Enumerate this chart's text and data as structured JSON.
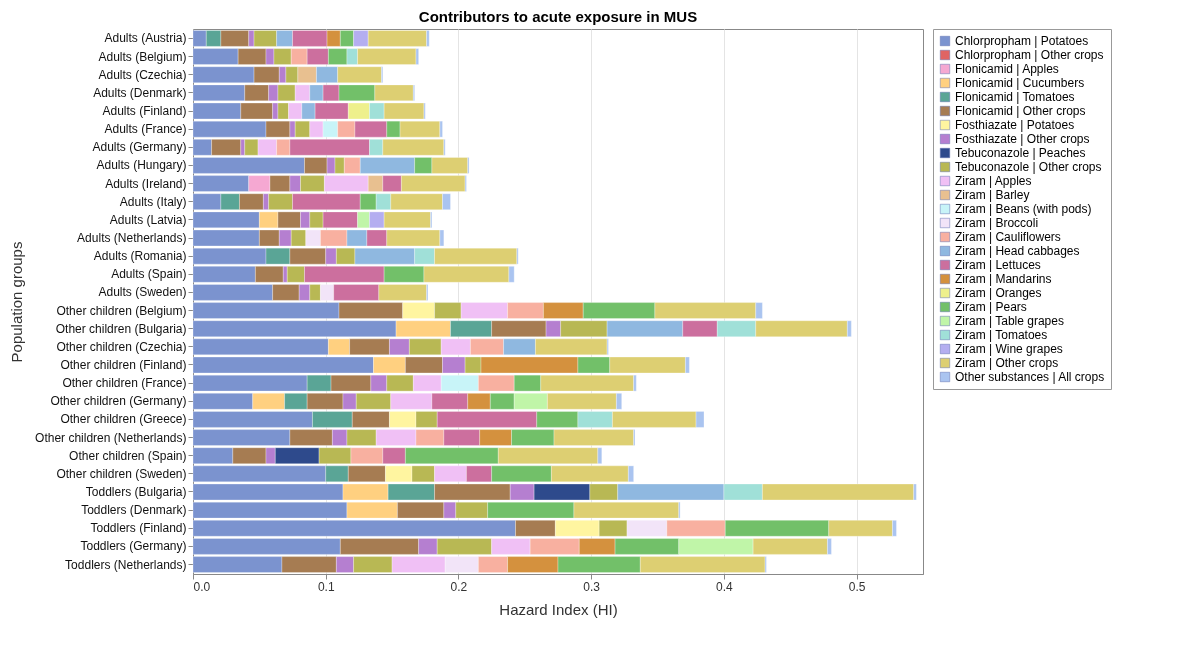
{
  "chart_data": {
    "type": "bar",
    "title": "Contributors to acute exposure in MUS",
    "xlabel": "Hazard Index (HI)",
    "ylabel": "Population groups",
    "orientation": "horizontal",
    "stacked": true,
    "grid": "x",
    "legend": "right",
    "xlim": [
      0,
      0.55
    ],
    "xticks": [
      {
        "value": 0,
        "label": "0.0"
      },
      0.1,
      0.2,
      0.3,
      0.4,
      0.5
    ],
    "categories": [
      "Adults (Austria)",
      "Adults (Belgium)",
      "Adults (Czechia)",
      "Adults (Denmark)",
      "Adults (Finland)",
      "Adults (France)",
      "Adults (Germany)",
      "Adults (Hungary)",
      "Adults (Ireland)",
      "Adults (Italy)",
      "Adults (Latvia)",
      "Adults (Netherlands)",
      "Adults (Romania)",
      "Adults (Spain)",
      "Adults (Sweden)",
      "Other children (Belgium)",
      "Other children (Bulgaria)",
      "Other children (Czechia)",
      "Other children (Finland)",
      "Other children (France)",
      "Other children (Germany)",
      "Other children (Greece)",
      "Other children (Netherlands)",
      "Other children (Spain)",
      "Other children (Sweden)",
      "Toddlers (Bulgaria)",
      "Toddlers (Denmark)",
      "Toddlers (Finland)",
      "Toddlers (Germany)",
      "Toddlers (Netherlands)"
    ],
    "series": [
      {
        "name": "Chlorpropham | Potatoes",
        "color": "#7b93cf",
        "values": [
          0.01,
          0.034,
          0.046,
          0.039,
          0.036,
          0.055,
          0.014,
          0.084,
          0.042,
          0.021,
          0.05,
          0.05,
          0.055,
          0.047,
          0.06,
          0.11,
          0.153,
          0.102,
          0.136,
          0.086,
          0.045,
          0.09,
          0.073,
          0.03,
          0.1,
          0.113,
          0.116,
          0.243,
          0.111,
          0.067
        ]
      },
      {
        "name": "Chlorpropham | Other crops",
        "color": "#e06464",
        "values": [
          null,
          null,
          null,
          null,
          null,
          null,
          null,
          null,
          null,
          null,
          null,
          null,
          null,
          null,
          null,
          null,
          null,
          null,
          null,
          null,
          null,
          null,
          null,
          null,
          null,
          null,
          null,
          null,
          null,
          null
        ]
      },
      {
        "name": "Flonicamid | Apples",
        "color": "#f5a8d2",
        "values": [
          null,
          null,
          null,
          null,
          null,
          null,
          null,
          null,
          0.016,
          null,
          null,
          null,
          null,
          null,
          null,
          null,
          null,
          null,
          null,
          null,
          null,
          null,
          null,
          null,
          null,
          null,
          null,
          null,
          null,
          null
        ]
      },
      {
        "name": "Flonicamid | Cucumbers",
        "color": "#ffd080",
        "values": [
          null,
          null,
          null,
          null,
          null,
          null,
          null,
          null,
          null,
          null,
          0.014,
          null,
          null,
          null,
          null,
          null,
          0.041,
          0.016,
          0.024,
          null,
          0.024,
          null,
          null,
          null,
          null,
          0.034,
          0.038,
          null,
          null,
          null
        ]
      },
      {
        "name": "Flonicamid | Tomatoes",
        "color": "#5aa596",
        "values": [
          0.011,
          null,
          null,
          null,
          null,
          null,
          null,
          null,
          null,
          0.014,
          null,
          null,
          0.018,
          null,
          null,
          null,
          0.031,
          null,
          null,
          0.018,
          0.017,
          0.03,
          null,
          null,
          0.017,
          0.035,
          null,
          null,
          null,
          null
        ]
      },
      {
        "name": "Flonicamid | Other crops",
        "color": "#a67c52",
        "values": [
          0.021,
          0.021,
          0.019,
          0.018,
          0.024,
          0.018,
          0.022,
          0.017,
          0.015,
          0.018,
          0.017,
          0.015,
          0.027,
          0.021,
          0.02,
          0.048,
          0.041,
          0.03,
          0.028,
          0.03,
          0.027,
          0.028,
          0.032,
          0.025,
          0.028,
          0.057,
          0.035,
          0.03,
          0.059,
          0.041
        ]
      },
      {
        "name": "Fosthiazate | Potatoes",
        "color": "#fff5a0",
        "values": [
          null,
          null,
          null,
          null,
          null,
          null,
          null,
          null,
          null,
          null,
          null,
          null,
          null,
          null,
          null,
          0.024,
          null,
          null,
          null,
          null,
          null,
          0.02,
          null,
          null,
          0.02,
          null,
          null,
          0.033,
          null,
          null
        ]
      },
      {
        "name": "Fosthiazate | Other crops",
        "color": "#b57fd0",
        "values": [
          0.004,
          0.006,
          0.005,
          0.007,
          0.004,
          0.004,
          0.003,
          0.006,
          0.008,
          0.004,
          0.007,
          0.009,
          0.008,
          0.003,
          0.008,
          null,
          0.011,
          0.015,
          0.017,
          0.012,
          0.01,
          null,
          0.011,
          0.007,
          null,
          0.018,
          0.009,
          null,
          0.014,
          0.013
        ]
      },
      {
        "name": "Tebuconazole | Peaches",
        "color": "#2e4a8c",
        "values": [
          null,
          null,
          null,
          null,
          null,
          null,
          null,
          null,
          null,
          null,
          null,
          null,
          null,
          null,
          null,
          null,
          null,
          null,
          null,
          null,
          null,
          null,
          null,
          0.033,
          null,
          0.042,
          null,
          null,
          null,
          null
        ]
      },
      {
        "name": "Tebuconazole | Other crops",
        "color": "#b8b854",
        "values": [
          0.017,
          0.013,
          0.009,
          0.013,
          0.008,
          0.011,
          0.01,
          0.007,
          0.018,
          0.018,
          0.01,
          0.011,
          0.014,
          0.013,
          0.008,
          0.02,
          0.035,
          0.024,
          0.012,
          0.02,
          0.026,
          0.016,
          0.022,
          0.024,
          0.017,
          0.021,
          0.024,
          0.021,
          0.041,
          0.029
        ]
      },
      {
        "name": "Ziram | Apples",
        "color": "#f0c0f5",
        "values": [
          null,
          null,
          null,
          0.011,
          0.01,
          0.01,
          0.014,
          null,
          0.033,
          null,
          null,
          null,
          null,
          null,
          null,
          0.035,
          null,
          0.022,
          null,
          0.021,
          0.031,
          null,
          0.03,
          null,
          0.024,
          null,
          null,
          null,
          0.029,
          0.04
        ]
      },
      {
        "name": "Ziram | Barley",
        "color": "#e8c090",
        "values": [
          null,
          null,
          0.014,
          null,
          null,
          null,
          null,
          null,
          0.011,
          null,
          null,
          null,
          null,
          null,
          null,
          null,
          null,
          null,
          null,
          null,
          null,
          null,
          null,
          null,
          null,
          null,
          null,
          null,
          null,
          null
        ]
      },
      {
        "name": "Ziram | Beans (with pods)",
        "color": "#c8f4f8",
        "values": [
          null,
          null,
          null,
          null,
          null,
          0.011,
          null,
          null,
          null,
          null,
          null,
          null,
          null,
          null,
          null,
          null,
          null,
          null,
          null,
          0.028,
          null,
          null,
          null,
          null,
          null,
          null,
          null,
          null,
          null,
          null
        ]
      },
      {
        "name": "Ziram | Broccoli",
        "color": "#f2e4f8",
        "values": [
          null,
          null,
          null,
          null,
          null,
          null,
          null,
          null,
          null,
          null,
          null,
          0.011,
          null,
          null,
          0.01,
          null,
          null,
          null,
          null,
          null,
          null,
          null,
          null,
          null,
          null,
          null,
          null,
          0.03,
          null,
          0.025
        ]
      },
      {
        "name": "Ziram | Cauliflowers",
        "color": "#f8b0a0",
        "values": [
          null,
          0.012,
          null,
          null,
          null,
          0.013,
          0.01,
          0.012,
          null,
          null,
          null,
          0.02,
          null,
          null,
          null,
          0.027,
          null,
          0.025,
          null,
          0.027,
          null,
          null,
          0.021,
          0.024,
          null,
          null,
          null,
          0.044,
          0.037,
          0.022
        ]
      },
      {
        "name": "Ziram | Head cabbages",
        "color": "#8fb8e0",
        "values": [
          0.012,
          null,
          0.016,
          0.01,
          0.01,
          null,
          null,
          0.041,
          null,
          null,
          null,
          0.015,
          0.045,
          null,
          null,
          null,
          0.057,
          0.024,
          null,
          null,
          null,
          null,
          null,
          null,
          null,
          0.08,
          null,
          null,
          null,
          null
        ]
      },
      {
        "name": "Ziram | Lettuces",
        "color": "#cc6f9e",
        "values": [
          0.026,
          0.016,
          null,
          0.012,
          0.025,
          0.024,
          0.06,
          null,
          0.014,
          0.051,
          0.026,
          0.015,
          null,
          0.06,
          0.034,
          null,
          0.026,
          null,
          null,
          null,
          0.027,
          0.075,
          0.027,
          0.017,
          0.019,
          null,
          null,
          null,
          null,
          null
        ]
      },
      {
        "name": "Ziram | Mandarins",
        "color": "#d4913e",
        "values": [
          0.01,
          null,
          null,
          null,
          null,
          null,
          null,
          null,
          null,
          null,
          null,
          null,
          null,
          null,
          null,
          0.03,
          null,
          null,
          0.073,
          null,
          0.017,
          null,
          0.024,
          null,
          null,
          null,
          null,
          null,
          0.027,
          0.038
        ]
      },
      {
        "name": "Ziram | Oranges",
        "color": "#eef08c",
        "values": [
          null,
          null,
          null,
          null,
          0.016,
          null,
          null,
          null,
          null,
          null,
          null,
          null,
          null,
          null,
          null,
          null,
          null,
          null,
          null,
          null,
          null,
          null,
          null,
          null,
          null,
          null,
          null,
          null,
          null,
          null
        ]
      },
      {
        "name": "Ziram | Pears",
        "color": "#72c069",
        "values": [
          0.01,
          0.014,
          null,
          0.027,
          null,
          0.01,
          null,
          0.013,
          null,
          0.012,
          null,
          null,
          null,
          0.03,
          null,
          0.054,
          null,
          null,
          0.024,
          0.02,
          0.018,
          0.031,
          0.032,
          0.07,
          0.045,
          null,
          0.065,
          0.078,
          0.048,
          0.062
        ]
      },
      {
        "name": "Ziram | Table grapes",
        "color": "#c0f5a8",
        "values": [
          null,
          null,
          null,
          null,
          null,
          null,
          null,
          null,
          null,
          null,
          0.009,
          null,
          null,
          null,
          null,
          null,
          null,
          null,
          null,
          null,
          0.025,
          null,
          null,
          null,
          null,
          null,
          null,
          null,
          0.056,
          null
        ]
      },
      {
        "name": "Ziram | Tomatoes",
        "color": "#a0e0d8",
        "values": [
          null,
          0.008,
          null,
          null,
          0.011,
          null,
          0.01,
          null,
          null,
          0.011,
          null,
          null,
          0.015,
          null,
          null,
          null,
          0.029,
          null,
          null,
          null,
          null,
          0.026,
          null,
          null,
          null,
          0.029,
          null,
          null,
          null,
          null
        ]
      },
      {
        "name": "Ziram | Wine grapes",
        "color": "#b4aef0",
        "values": [
          0.011,
          null,
          null,
          null,
          null,
          null,
          null,
          null,
          null,
          null,
          0.011,
          null,
          null,
          null,
          null,
          null,
          null,
          null,
          null,
          null,
          null,
          null,
          null,
          null,
          null,
          null,
          null,
          null,
          null,
          null
        ]
      },
      {
        "name": "Ziram | Other crops",
        "color": "#ddcf72",
        "values": [
          0.044,
          0.044,
          0.033,
          0.029,
          0.03,
          0.03,
          0.046,
          0.027,
          0.048,
          0.039,
          0.035,
          0.04,
          0.062,
          0.064,
          0.036,
          0.076,
          0.069,
          0.054,
          0.057,
          0.07,
          0.052,
          0.063,
          0.06,
          0.075,
          0.058,
          0.114,
          0.079,
          0.048,
          0.056,
          0.094
        ]
      },
      {
        "name": "Other substances | All crops",
        "color": "#aac4f0",
        "values": [
          0.002,
          0.002,
          0.001,
          0.001,
          0.001,
          0.002,
          0.001,
          0.001,
          0.001,
          0.006,
          0.001,
          0.003,
          0.001,
          0.004,
          0.001,
          0.005,
          0.003,
          0.001,
          0.003,
          0.002,
          0.004,
          0.006,
          0.001,
          0.003,
          0.004,
          0.002,
          0.001,
          0.003,
          0.003,
          0.001
        ]
      }
    ]
  }
}
